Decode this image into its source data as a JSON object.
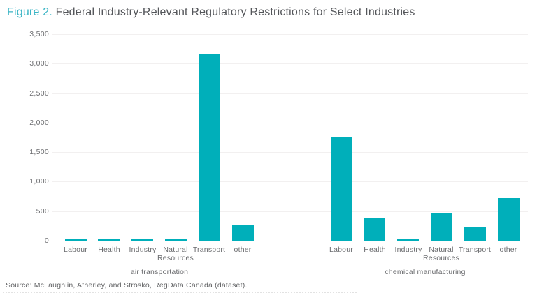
{
  "title": {
    "prefix": "Figure 2.",
    "rest": " Federal Industry-Relevant Regulatory Restrictions for Select Industries"
  },
  "source": "Source: McLaughlin, Atherley, and Strosko, RegData Canada (dataset).",
  "colors": {
    "bar": "#00afba",
    "title_accent": "#3bb5c5",
    "title_text": "#54565a",
    "axis_text": "#6d6e71",
    "gridline": "#f2f0f0",
    "axis_line": "#56565a"
  },
  "chart_data": {
    "type": "bar",
    "title": "Figure 2. Federal Industry-Relevant Regulatory Restrictions for Select Industries",
    "xlabel": "",
    "ylabel": "",
    "ylim": [
      0,
      3500
    ],
    "yticks": [
      0,
      500,
      1000,
      1500,
      2000,
      2500,
      3000,
      3500
    ],
    "ytick_labels": [
      "0",
      "500",
      "1,000",
      "1,500",
      "2,000",
      "2,500",
      "3,000",
      "3,500"
    ],
    "grid": true,
    "legend": false,
    "categories": [
      "Labour",
      "Health",
      "Industry",
      "Natural Resources",
      "Transport",
      "other"
    ],
    "groups": [
      {
        "label": "air transportation",
        "values": [
          20,
          40,
          15,
          40,
          3160,
          265
        ]
      },
      {
        "label": "chemical manufacturing",
        "values": [
          1750,
          390,
          15,
          465,
          230,
          725
        ]
      }
    ]
  }
}
